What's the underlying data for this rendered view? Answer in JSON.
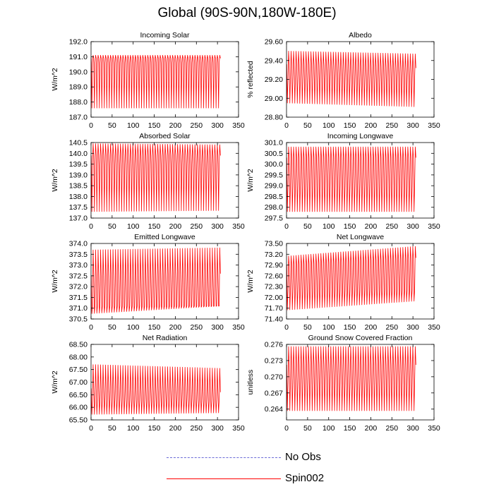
{
  "title": "Global (90S-90N,180W-180E)",
  "legend": [
    {
      "label": "No Obs",
      "color": "#6a6ad6",
      "style": "dashed"
    },
    {
      "label": "Spin002",
      "color": "#ff0000",
      "style": "solid"
    }
  ],
  "chart_data": [
    {
      "type": "line",
      "title": "Incoming Solar",
      "ylabel": "W/m^2",
      "xlim": [
        0,
        350
      ],
      "xticks": [
        0,
        50,
        100,
        150,
        200,
        250,
        300,
        350
      ],
      "ylim": [
        187.0,
        192.0
      ],
      "yticks": [
        "187.0",
        "188.0",
        "189.0",
        "190.0",
        "191.0",
        "192.0"
      ],
      "series": [
        {
          "name": "Spin002",
          "n_cycles": 52,
          "x_end": 307,
          "osc_low_start": 187.6,
          "osc_low_end": 187.6,
          "osc_high_start": 191.1,
          "osc_high_end": 191.1,
          "band_low_start": 190.6,
          "band_low_end": 190.6,
          "band_high_start": 190.9,
          "band_high_end": 190.9
        }
      ]
    },
    {
      "type": "line",
      "title": "Albedo",
      "ylabel": "% reflected",
      "xlim": [
        0,
        350
      ],
      "xticks": [
        0,
        50,
        100,
        150,
        200,
        250,
        300,
        350
      ],
      "ylim": [
        28.8,
        29.6
      ],
      "yticks": [
        "28.80",
        "29.00",
        "29.20",
        "29.40",
        "29.60"
      ],
      "series": [
        {
          "name": "Spin002",
          "n_cycles": 52,
          "x_end": 307,
          "osc_low_start": 28.95,
          "osc_low_end": 28.91,
          "osc_high_start": 29.5,
          "osc_high_end": 29.47,
          "band_low_start": 29.22,
          "band_low_end": 29.22,
          "band_high_start": 29.36,
          "band_high_end": 29.32
        }
      ]
    },
    {
      "type": "line",
      "title": "Absorbed Solar",
      "ylabel": "W/m^2",
      "xlim": [
        0,
        350
      ],
      "xticks": [
        0,
        50,
        100,
        150,
        200,
        250,
        300,
        350
      ],
      "ylim": [
        137.0,
        140.5
      ],
      "yticks": [
        "137.0",
        "137.5",
        "138.0",
        "138.5",
        "139.0",
        "139.5",
        "140.0",
        "140.5"
      ],
      "series": [
        {
          "name": "Spin002",
          "n_cycles": 52,
          "x_end": 307,
          "osc_low_start": 137.3,
          "osc_low_end": 137.35,
          "osc_high_start": 140.45,
          "osc_high_end": 140.4,
          "band_low_start": 139.5,
          "band_low_end": 139.5,
          "band_high_start": 139.9,
          "band_high_end": 139.9
        }
      ]
    },
    {
      "type": "line",
      "title": "Incoming Longwave",
      "ylabel": "W/m^2",
      "xlim": [
        0,
        350
      ],
      "xticks": [
        0,
        50,
        100,
        150,
        200,
        250,
        300,
        350
      ],
      "ylim": [
        297.5,
        301.0
      ],
      "yticks": [
        "297.5",
        "298.0",
        "298.5",
        "299.0",
        "299.5",
        "300.0",
        "300.5",
        "301.0"
      ],
      "series": [
        {
          "name": "Spin002",
          "n_cycles": 52,
          "x_end": 307,
          "osc_low_start": 297.8,
          "osc_low_end": 297.8,
          "osc_high_start": 300.8,
          "osc_high_end": 300.8,
          "band_low_start": 299.0,
          "band_low_end": 299.0,
          "band_high_start": 300.3,
          "band_high_end": 300.3
        }
      ]
    },
    {
      "type": "line",
      "title": "Emitted Longwave",
      "ylabel": "W/m^2",
      "xlim": [
        0,
        350
      ],
      "xticks": [
        0,
        50,
        100,
        150,
        200,
        250,
        300,
        350
      ],
      "ylim": [
        370.5,
        374.0
      ],
      "yticks": [
        "370.5",
        "371.0",
        "371.5",
        "372.0",
        "372.5",
        "373.0",
        "373.5",
        "374.0"
      ],
      "series": [
        {
          "name": "Spin002",
          "n_cycles": 52,
          "x_end": 307,
          "osc_low_start": 370.75,
          "osc_low_end": 371.1,
          "osc_high_start": 373.7,
          "osc_high_end": 373.8,
          "band_low_start": 371.1,
          "band_low_end": 371.1,
          "band_high_start": 372.5,
          "band_high_end": 372.6
        }
      ]
    },
    {
      "type": "line",
      "title": "Net Longwave",
      "ylabel": "W/m^2",
      "xlim": [
        0,
        350
      ],
      "xticks": [
        0,
        50,
        100,
        150,
        200,
        250,
        300,
        350
      ],
      "ylim": [
        71.4,
        73.5
      ],
      "yticks": [
        "71.40",
        "71.70",
        "72.00",
        "72.30",
        "72.60",
        "72.90",
        "73.20",
        "73.50"
      ],
      "series": [
        {
          "name": "Spin002",
          "n_cycles": 52,
          "x_end": 307,
          "osc_low_start": 71.65,
          "osc_low_end": 71.9,
          "osc_high_start": 73.15,
          "osc_high_end": 73.42,
          "band_low_start": 72.2,
          "band_low_end": 72.2,
          "band_high_start": 72.9,
          "band_high_end": 73.1
        }
      ]
    },
    {
      "type": "line",
      "title": "Net Radiation",
      "ylabel": "W/m^2",
      "xlim": [
        0,
        350
      ],
      "xticks": [
        0,
        50,
        100,
        150,
        200,
        250,
        300,
        350
      ],
      "ylim": [
        65.5,
        68.5
      ],
      "yticks": [
        "65.50",
        "66.00",
        "66.50",
        "67.00",
        "67.50",
        "68.00",
        "68.50"
      ],
      "series": [
        {
          "name": "Spin002",
          "n_cycles": 52,
          "x_end": 307,
          "osc_low_start": 65.72,
          "osc_low_end": 65.78,
          "osc_high_start": 67.7,
          "osc_high_end": 67.55,
          "band_low_start": 66.3,
          "band_low_end": 66.3,
          "band_high_start": 66.75,
          "band_high_end": 66.6
        }
      ]
    },
    {
      "type": "line",
      "title": "Ground Snow Covered Fraction",
      "ylabel": "unitless",
      "xlim": [
        0,
        350
      ],
      "xticks": [
        0,
        50,
        100,
        150,
        200,
        250,
        300,
        350
      ],
      "ylim": [
        0.262,
        0.276
      ],
      "yticks": [
        "0.264",
        "0.267",
        "0.270",
        "0.273",
        "0.276"
      ],
      "series": [
        {
          "name": "Spin002",
          "n_cycles": 52,
          "x_end": 307,
          "osc_low_start": 0.2637,
          "osc_low_end": 0.2637,
          "osc_high_start": 0.2756,
          "osc_high_end": 0.2756,
          "band_low_start": 0.269,
          "band_low_end": 0.269,
          "band_high_start": 0.2722,
          "band_high_end": 0.2722
        }
      ]
    }
  ]
}
